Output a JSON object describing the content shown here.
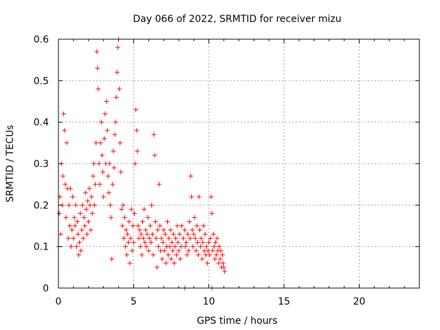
{
  "chart_data": {
    "type": "scatter",
    "title": "Day 066 of 2022, SRMTID for receiver mizu",
    "xlabel": "GPS time / hours",
    "ylabel": "SRMTID / TECUs",
    "xlim": [
      0,
      24
    ],
    "ylim": [
      0,
      0.6
    ],
    "xticks": [
      0,
      5,
      10,
      15,
      20
    ],
    "xtick_labels": [
      "0",
      "5",
      "10",
      "15",
      "20"
    ],
    "yticks": [
      0,
      0.1,
      0.2,
      0.3,
      0.4,
      0.5,
      0.6
    ],
    "ytick_labels": [
      "0",
      "0.1",
      "0.2",
      "0.3",
      "0.4",
      "0.5",
      "0.6"
    ],
    "grid": true,
    "marker": "+",
    "series_color": "#ff0000",
    "series": [
      {
        "name": "SRMTID",
        "points": [
          [
            0.0,
            0.1
          ],
          [
            0.05,
            0.18
          ],
          [
            0.1,
            0.22
          ],
          [
            0.15,
            0.13
          ],
          [
            0.2,
            0.3
          ],
          [
            0.25,
            0.2
          ],
          [
            0.3,
            0.27
          ],
          [
            0.35,
            0.42
          ],
          [
            0.4,
            0.38
          ],
          [
            0.45,
            0.25
          ],
          [
            0.5,
            0.17
          ],
          [
            0.55,
            0.35
          ],
          [
            0.6,
            0.24
          ],
          [
            0.65,
            0.12
          ],
          [
            0.7,
            0.2
          ],
          [
            0.75,
            0.15
          ],
          [
            0.8,
            0.24
          ],
          [
            0.85,
            0.1
          ],
          [
            0.9,
            0.14
          ],
          [
            0.95,
            0.22
          ],
          [
            1.0,
            0.12
          ],
          [
            1.05,
            0.17
          ],
          [
            1.1,
            0.15
          ],
          [
            1.15,
            0.2
          ],
          [
            1.2,
            0.1
          ],
          [
            1.25,
            0.16
          ],
          [
            1.3,
            0.13
          ],
          [
            1.35,
            0.08
          ],
          [
            1.4,
            0.11
          ],
          [
            1.45,
            0.18
          ],
          [
            1.5,
            0.09
          ],
          [
            1.55,
            0.14
          ],
          [
            1.6,
            0.2
          ],
          [
            1.65,
            0.12
          ],
          [
            1.7,
            0.17
          ],
          [
            1.75,
            0.15
          ],
          [
            1.8,
            0.23
          ],
          [
            1.85,
            0.19
          ],
          [
            1.9,
            0.13
          ],
          [
            1.95,
            0.21
          ],
          [
            2.0,
            0.16
          ],
          [
            2.05,
            0.24
          ],
          [
            2.1,
            0.2
          ],
          [
            2.15,
            0.14
          ],
          [
            2.2,
            0.22
          ],
          [
            2.25,
            0.18
          ],
          [
            2.3,
            0.27
          ],
          [
            2.35,
            0.3
          ],
          [
            2.4,
            0.2
          ],
          [
            2.45,
            0.25
          ],
          [
            2.5,
            0.35
          ],
          [
            2.55,
            0.57
          ],
          [
            2.6,
            0.53
          ],
          [
            2.65,
            0.48
          ],
          [
            2.7,
            0.3
          ],
          [
            2.75,
            0.25
          ],
          [
            2.8,
            0.35
          ],
          [
            2.85,
            0.4
          ],
          [
            2.9,
            0.32
          ],
          [
            2.95,
            0.28
          ],
          [
            3.0,
            0.22
          ],
          [
            3.05,
            0.36
          ],
          [
            3.1,
            0.42
          ],
          [
            3.15,
            0.3
          ],
          [
            3.2,
            0.45
          ],
          [
            3.25,
            0.38
          ],
          [
            3.3,
            0.27
          ],
          [
            3.35,
            0.23
          ],
          [
            3.4,
            0.3
          ],
          [
            3.45,
            0.2
          ],
          [
            3.5,
            0.17
          ],
          [
            3.55,
            0.07
          ],
          [
            3.6,
            0.25
          ],
          [
            3.65,
            0.33
          ],
          [
            3.7,
            0.29
          ],
          [
            3.75,
            0.37
          ],
          [
            3.8,
            0.4
          ],
          [
            3.85,
            0.46
          ],
          [
            3.9,
            0.52
          ],
          [
            3.95,
            0.58
          ],
          [
            4.0,
            0.6
          ],
          [
            4.05,
            0.48
          ],
          [
            4.1,
            0.35
          ],
          [
            4.15,
            0.28
          ],
          [
            4.2,
            0.19
          ],
          [
            4.25,
            0.15
          ],
          [
            4.3,
            0.2
          ],
          [
            4.35,
            0.12
          ],
          [
            4.4,
            0.17
          ],
          [
            4.45,
            0.1
          ],
          [
            4.5,
            0.14
          ],
          [
            4.55,
            0.08
          ],
          [
            4.6,
            0.13
          ],
          [
            4.65,
            0.11
          ],
          [
            4.7,
            0.16
          ],
          [
            4.75,
            0.06
          ],
          [
            4.8,
            0.12
          ],
          [
            4.85,
            0.19
          ],
          [
            4.9,
            0.09
          ],
          [
            4.95,
            0.15
          ],
          [
            5.0,
            0.11
          ],
          [
            5.05,
            0.18
          ],
          [
            5.1,
            0.3
          ],
          [
            5.15,
            0.43
          ],
          [
            5.2,
            0.38
          ],
          [
            5.25,
            0.33
          ],
          [
            5.3,
            0.15
          ],
          [
            5.35,
            0.12
          ],
          [
            5.4,
            0.14
          ],
          [
            5.45,
            0.1
          ],
          [
            5.5,
            0.13
          ],
          [
            5.55,
            0.08
          ],
          [
            5.6,
            0.16
          ],
          [
            5.65,
            0.12
          ],
          [
            5.7,
            0.19
          ],
          [
            5.75,
            0.11
          ],
          [
            5.8,
            0.14
          ],
          [
            5.85,
            0.1
          ],
          [
            5.9,
            0.13
          ],
          [
            5.95,
            0.17
          ],
          [
            6.0,
            0.09
          ],
          [
            6.05,
            0.12
          ],
          [
            6.1,
            0.15
          ],
          [
            6.15,
            0.11
          ],
          [
            6.2,
            0.2
          ],
          [
            6.25,
            0.13
          ],
          [
            6.3,
            0.08
          ],
          [
            6.35,
            0.37
          ],
          [
            6.4,
            0.32
          ],
          [
            6.45,
            0.16
          ],
          [
            6.5,
            0.12
          ],
          [
            6.55,
            0.05
          ],
          [
            6.6,
            0.14
          ],
          [
            6.65,
            0.1
          ],
          [
            6.7,
            0.25
          ],
          [
            6.75,
            0.15
          ],
          [
            6.8,
            0.09
          ],
          [
            6.85,
            0.12
          ],
          [
            6.9,
            0.07
          ],
          [
            6.95,
            0.11
          ],
          [
            7.0,
            0.14
          ],
          [
            7.05,
            0.09
          ],
          [
            7.1,
            0.13
          ],
          [
            7.15,
            0.06
          ],
          [
            7.2,
            0.1
          ],
          [
            7.25,
            0.16
          ],
          [
            7.3,
            0.08
          ],
          [
            7.35,
            0.12
          ],
          [
            7.4,
            0.1
          ],
          [
            7.45,
            0.14
          ],
          [
            7.5,
            0.07
          ],
          [
            7.55,
            0.11
          ],
          [
            7.6,
            0.09
          ],
          [
            7.65,
            0.13
          ],
          [
            7.7,
            0.06
          ],
          [
            7.75,
            0.1
          ],
          [
            7.8,
            0.12
          ],
          [
            7.85,
            0.08
          ],
          [
            7.9,
            0.15
          ],
          [
            7.95,
            0.11
          ],
          [
            8.0,
            0.09
          ],
          [
            8.05,
            0.13
          ],
          [
            8.1,
            0.07
          ],
          [
            8.15,
            0.1
          ],
          [
            8.2,
            0.15
          ],
          [
            8.3,
            0.12
          ],
          [
            8.4,
            0.14
          ],
          [
            8.45,
            0.1
          ],
          [
            8.5,
            0.11
          ],
          [
            8.55,
            0.08
          ],
          [
            8.6,
            0.13
          ],
          [
            8.65,
            0.09
          ],
          [
            8.7,
            0.16
          ],
          [
            8.75,
            0.12
          ],
          [
            8.8,
            0.27
          ],
          [
            8.85,
            0.22
          ],
          [
            8.9,
            0.14
          ],
          [
            8.95,
            0.1
          ],
          [
            9.0,
            0.13
          ],
          [
            9.05,
            0.17
          ],
          [
            9.1,
            0.12
          ],
          [
            9.15,
            0.09
          ],
          [
            9.2,
            0.15
          ],
          [
            9.25,
            0.11
          ],
          [
            9.3,
            0.08
          ],
          [
            9.35,
            0.22
          ],
          [
            9.4,
            0.14
          ],
          [
            9.45,
            0.1
          ],
          [
            9.5,
            0.12
          ],
          [
            9.55,
            0.07
          ],
          [
            9.6,
            0.11
          ],
          [
            9.65,
            0.15
          ],
          [
            9.7,
            0.09
          ],
          [
            9.75,
            0.13
          ],
          [
            9.8,
            0.08
          ],
          [
            9.85,
            0.1
          ],
          [
            9.9,
            0.06
          ],
          [
            9.95,
            0.09
          ],
          [
            10.0,
            0.11
          ],
          [
            10.05,
            0.08
          ],
          [
            10.1,
            0.12
          ],
          [
            10.15,
            0.22
          ],
          [
            10.2,
            0.18
          ],
          [
            10.25,
            0.09
          ],
          [
            10.3,
            0.13
          ],
          [
            10.35,
            0.1
          ],
          [
            10.4,
            0.07
          ],
          [
            10.45,
            0.11
          ],
          [
            10.5,
            0.08
          ],
          [
            10.55,
            0.12
          ],
          [
            10.6,
            0.09
          ],
          [
            10.65,
            0.06
          ],
          [
            10.7,
            0.1
          ],
          [
            10.75,
            0.07
          ],
          [
            10.8,
            0.09
          ],
          [
            10.85,
            0.05
          ],
          [
            10.9,
            0.08
          ],
          [
            10.95,
            0.06
          ],
          [
            11.0,
            0.05
          ],
          [
            11.05,
            0.04
          ],
          [
            8.4,
            0.0
          ],
          [
            10.2,
            0.0
          ]
        ]
      }
    ]
  }
}
